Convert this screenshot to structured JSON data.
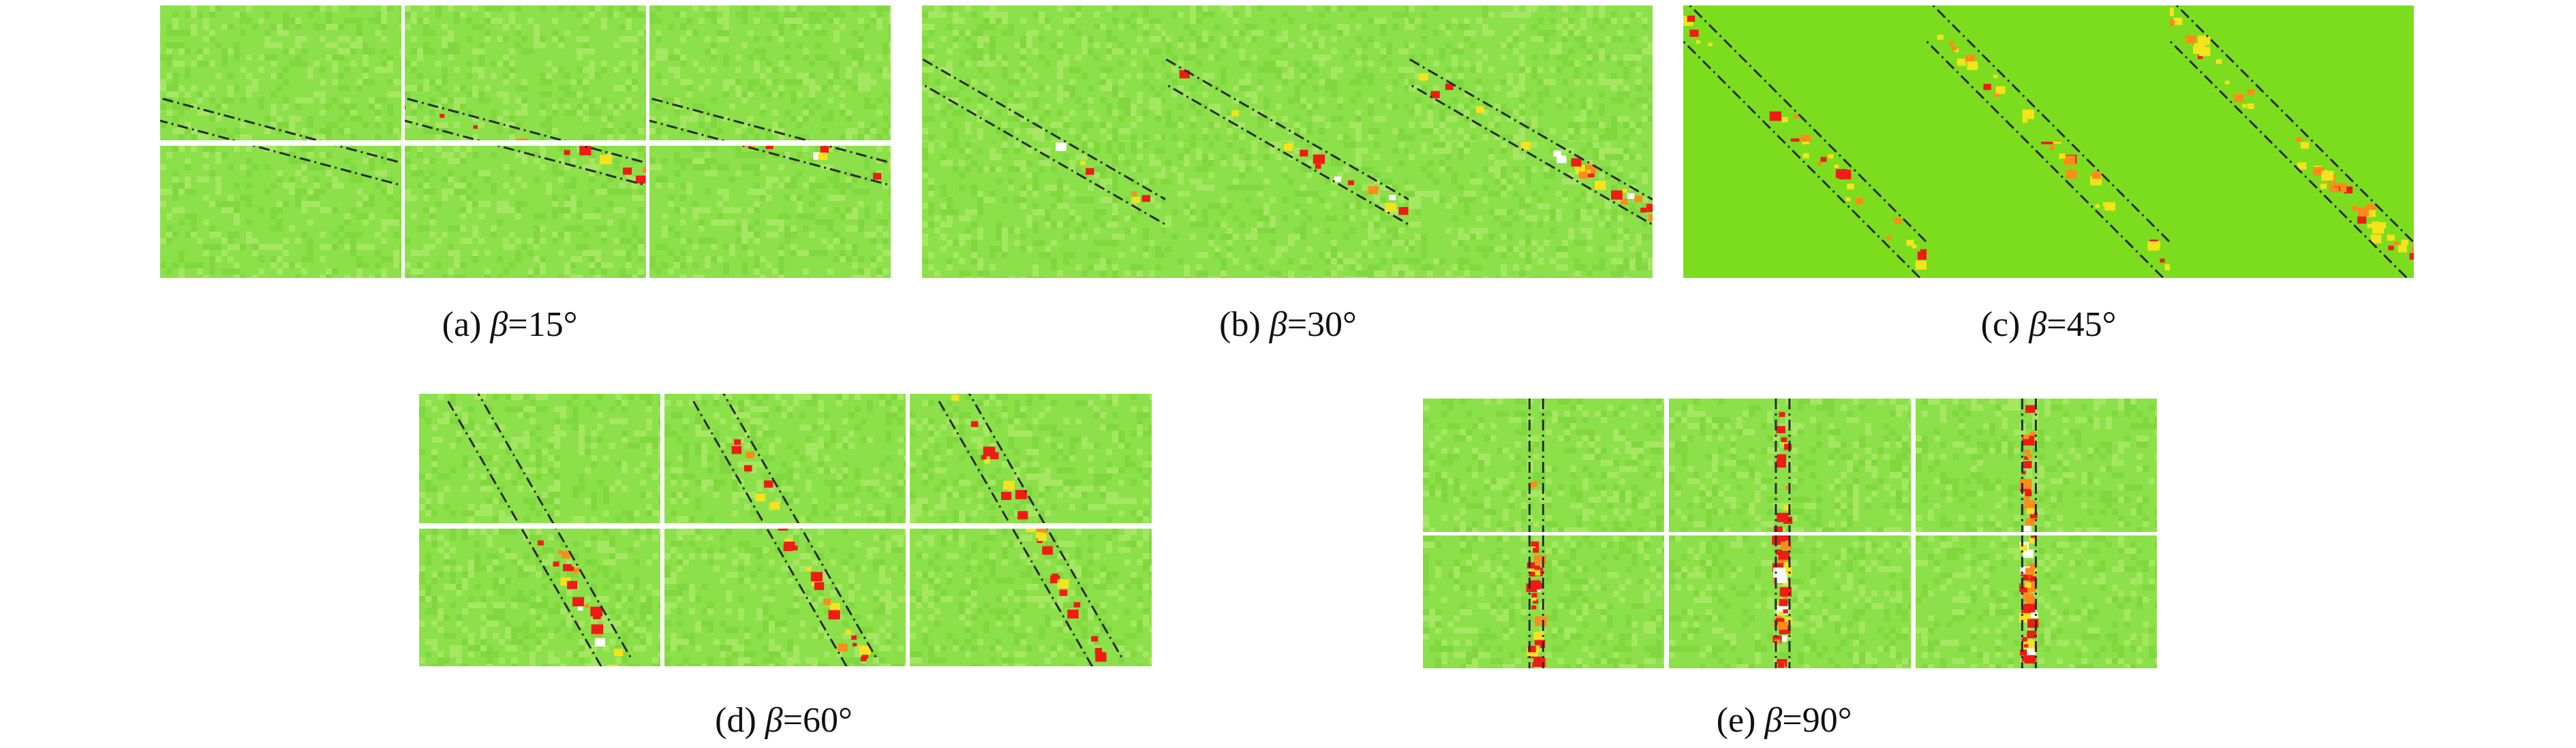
{
  "colors": {
    "matrix_green": "#8ce04a",
    "matrix_green_alt": "#7ed63c",
    "matrix_light": "#a9e866",
    "uniform_green": "#7cdd1e",
    "damage_yellow": "#f5e31d",
    "damage_orange": "#ff8c1a",
    "damage_red": "#ee1c14",
    "failure_white": "#ffffff",
    "joint_line": "#2a2a2a",
    "separator": "#ffffff"
  },
  "panels": [
    {
      "id": "a",
      "caption": {
        "prefix": "(a) ",
        "symbol": "β",
        "value": "=15°"
      },
      "beta_degrees": 15,
      "style": "grid",
      "grid": "2x3"
    },
    {
      "id": "b",
      "caption": {
        "prefix": "(b) ",
        "symbol": "β",
        "value": "=30°"
      },
      "beta_degrees": 30,
      "style": "grid",
      "grid": "2x3"
    },
    {
      "id": "c",
      "caption": {
        "prefix": "(c) ",
        "symbol": "β",
        "value": "=45°"
      },
      "beta_degrees": 45,
      "style": "uniform",
      "grid": "2x3"
    },
    {
      "id": "d",
      "caption": {
        "prefix": "(d) ",
        "symbol": "β",
        "value": "=60°"
      },
      "beta_degrees": 60,
      "style": "grid",
      "grid": "2x3"
    },
    {
      "id": "e",
      "caption": {
        "prefix": "(e) ",
        "symbol": "β",
        "value": "=90°"
      },
      "beta_degrees": 90,
      "style": "grid",
      "grid": "2x3"
    }
  ]
}
